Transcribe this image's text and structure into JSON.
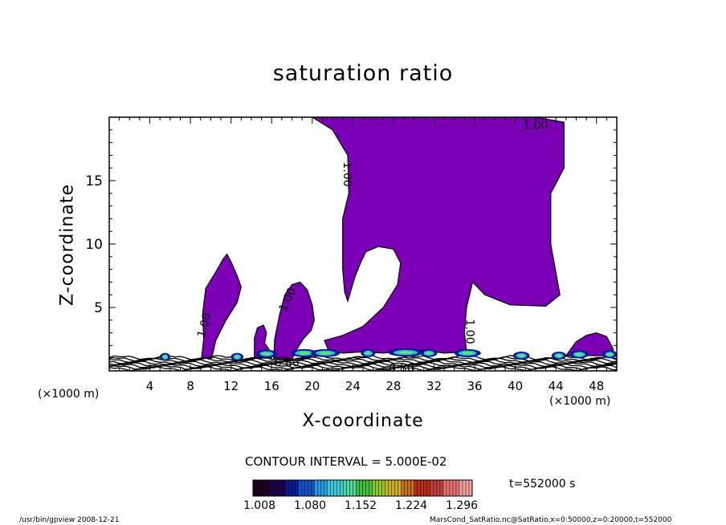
{
  "chart_data": {
    "type": "contour",
    "title": "saturation ratio",
    "xlabel": "X-coordinate",
    "ylabel": "Z-coordinate",
    "x_unit_left": "(×1000 m)",
    "x_unit_right": "(×1000 m)",
    "xlim": [
      0,
      50
    ],
    "ylim": [
      0,
      20
    ],
    "x_ticks": [
      4,
      8,
      12,
      16,
      20,
      24,
      28,
      32,
      36,
      40,
      44,
      48
    ],
    "y_ticks": [
      5,
      10,
      15
    ],
    "contour_interval_text": "CONTOUR INTERVAL = 5.000E-02",
    "time_text": "t=552000 s",
    "colorbar": {
      "ticks": [
        "1.008",
        "1.080",
        "1.152",
        "1.224",
        "1.296"
      ],
      "colors": [
        "#200020",
        "#1a0050",
        "#0c1a90",
        "#1050c8",
        "#2898e0",
        "#40c8d8",
        "#50d8a0",
        "#40c040",
        "#90c828",
        "#c8b020",
        "#c87018",
        "#b83010",
        "#c04040",
        "#e87070",
        "#f0a0a0"
      ]
    },
    "contour_labels": [
      {
        "text": "1.00",
        "x": 42.0,
        "z": 19.3,
        "rotate": 0
      },
      {
        "text": "1.00",
        "x": 23.4,
        "z": 15.5,
        "rotate": 90
      },
      {
        "text": "1.00",
        "x": 9.4,
        "z": 3.6,
        "rotate": -75
      },
      {
        "text": "1.00",
        "x": 17.6,
        "z": 5.6,
        "rotate": -65
      },
      {
        "text": "1.00",
        "x": 35.5,
        "z": 3.1,
        "rotate": 90
      },
      {
        "text": "0.80",
        "x": 28.8,
        "z": 0.2,
        "rotate": 0
      },
      {
        "text": "0.80",
        "x": 17.5,
        "z": 0.6,
        "rotate": 0
      }
    ],
    "saturated_regions": [
      {
        "name": "main-plume",
        "points": [
          [
            20,
            20
          ],
          [
            42,
            20
          ],
          [
            44.8,
            19.6
          ],
          [
            44.8,
            16
          ],
          [
            43.5,
            14
          ],
          [
            43.5,
            10
          ],
          [
            44.4,
            6
          ],
          [
            43,
            5.1
          ],
          [
            39.5,
            5.2
          ],
          [
            37,
            6
          ],
          [
            35.8,
            7
          ],
          [
            35.2,
            5
          ],
          [
            35,
            3
          ],
          [
            35.2,
            1.5
          ],
          [
            33,
            1.4
          ],
          [
            31,
            1.6
          ],
          [
            29,
            1.6
          ],
          [
            27,
            1.4
          ],
          [
            25,
            1.5
          ],
          [
            23,
            1.4
          ],
          [
            21.6,
            1.6
          ],
          [
            21.2,
            2.4
          ],
          [
            23,
            2.8
          ],
          [
            25,
            3.5
          ],
          [
            27,
            5
          ],
          [
            28.4,
            6.8
          ],
          [
            28.7,
            8.5
          ],
          [
            28,
            9.6
          ],
          [
            26.5,
            9.8
          ],
          [
            25.3,
            9.4
          ],
          [
            24.8,
            8.6
          ],
          [
            24.2,
            7.4
          ],
          [
            23.5,
            5.5
          ],
          [
            23.2,
            6.2
          ],
          [
            23,
            8
          ],
          [
            23,
            12
          ],
          [
            23.6,
            14
          ],
          [
            23.5,
            17
          ],
          [
            22,
            19
          ],
          [
            20,
            20
          ]
        ]
      },
      {
        "name": "left-tower",
        "points": [
          [
            9.1,
            1.0
          ],
          [
            9.3,
            2.5
          ],
          [
            9.2,
            4.5
          ],
          [
            9.5,
            6.5
          ],
          [
            10.5,
            7.8
          ],
          [
            11.2,
            8.8
          ],
          [
            11.6,
            9.2
          ],
          [
            12,
            8.6
          ],
          [
            12.6,
            7.5
          ],
          [
            13,
            6.6
          ],
          [
            12.6,
            5.4
          ],
          [
            11.5,
            4.0
          ],
          [
            10.5,
            2.4
          ],
          [
            10.1,
            1.0
          ]
        ]
      },
      {
        "name": "mid-bump",
        "points": [
          [
            16.2,
            0.9
          ],
          [
            16.3,
            2.5
          ],
          [
            16.8,
            4.5
          ],
          [
            17.3,
            6.0
          ],
          [
            18,
            6.8
          ],
          [
            18.8,
            7.0
          ],
          [
            19.5,
            6.4
          ],
          [
            20,
            5.2
          ],
          [
            20.2,
            4.0
          ],
          [
            19.9,
            3.2
          ],
          [
            19.1,
            2.5
          ],
          [
            18.4,
            1.6
          ],
          [
            18,
            0.9
          ]
        ]
      },
      {
        "name": "small-hump",
        "points": [
          [
            14.3,
            1.0
          ],
          [
            14.3,
            2.6
          ],
          [
            14.6,
            3.4
          ],
          [
            15.2,
            3.6
          ],
          [
            15.5,
            3.0
          ],
          [
            15.3,
            2.2
          ],
          [
            15.9,
            1.5
          ],
          [
            16,
            1.0
          ]
        ]
      },
      {
        "name": "right-hump",
        "points": [
          [
            45,
            1.2
          ],
          [
            46,
            2.3
          ],
          [
            47,
            2.8
          ],
          [
            48,
            3.0
          ],
          [
            49,
            2.7
          ],
          [
            49.6,
            1.8
          ],
          [
            49.8,
            1.2
          ]
        ]
      }
    ]
  },
  "footer": {
    "left": "/usr/bin/gpview   2008-12-21",
    "right": "MarsCond_SatRatio.nc@SatRatio,x=0:50000,z=0:20000,t=552000"
  }
}
